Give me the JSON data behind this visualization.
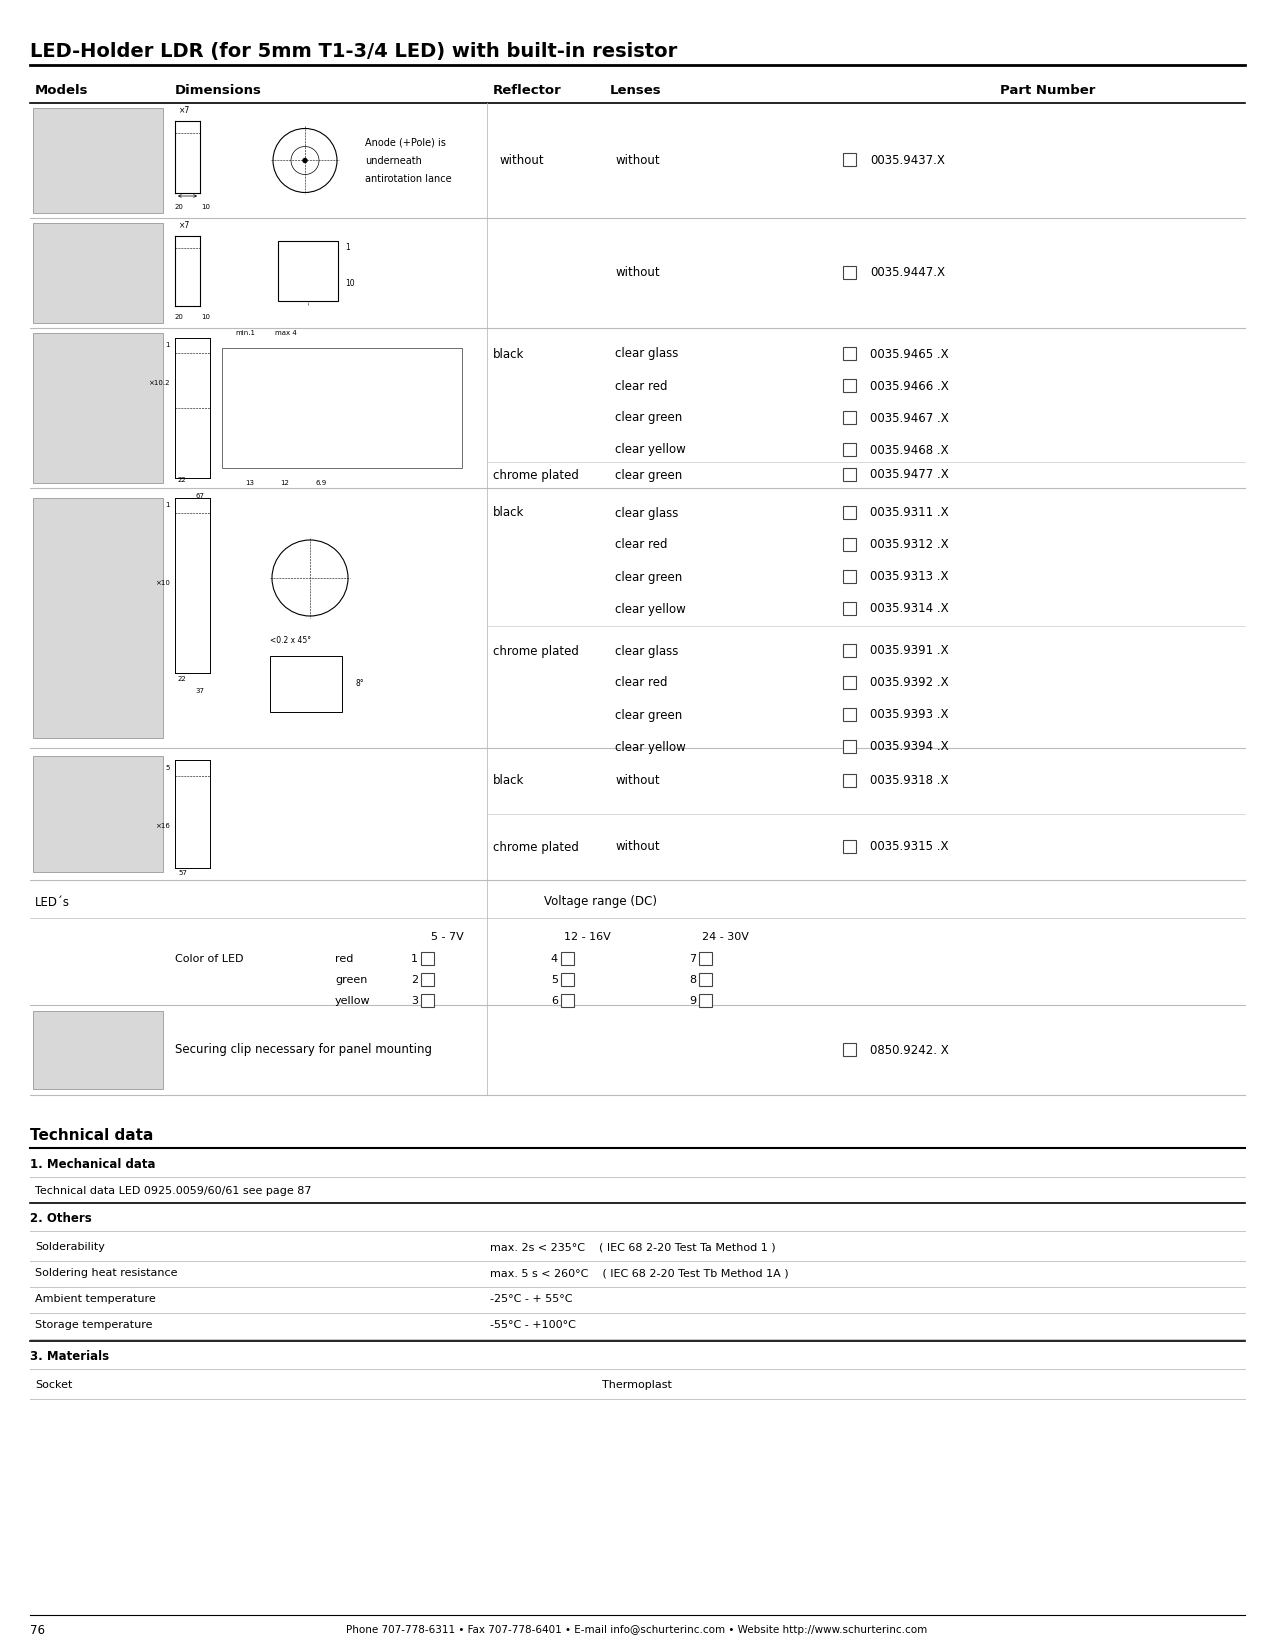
{
  "title": "LED-Holder LDR (for 5mm T1-3/4 LED) with built-in resistor",
  "page_number": "76",
  "footer": "Phone 707-778-6311 • Fax 707-778-6401 • E-mail info@schurterinc.com • Website http://www.schurterinc.com",
  "col_headers": [
    "Models",
    "Dimensions",
    "Reflector",
    "Lenses",
    "Part Number"
  ],
  "bg_color": "#ffffff",
  "text_color": "#000000"
}
